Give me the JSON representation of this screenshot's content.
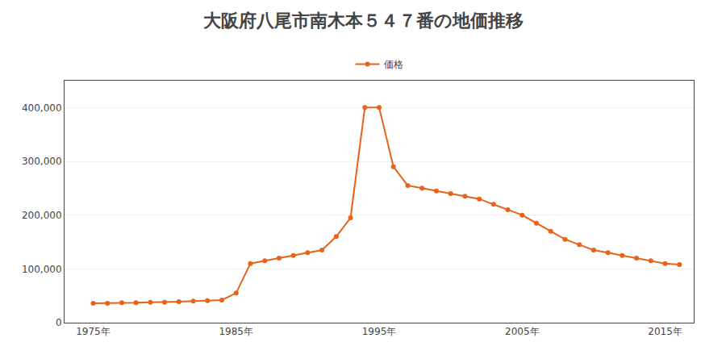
{
  "chart_data": {
    "type": "line",
    "title": "大阪府八尾市南木本５４７番の地価推移",
    "x": [
      1975,
      1976,
      1977,
      1978,
      1979,
      1980,
      1981,
      1982,
      1983,
      1984,
      1985,
      1986,
      1987,
      1988,
      1989,
      1990,
      1991,
      1992,
      1993,
      1994,
      1995,
      1996,
      1997,
      1998,
      1999,
      2000,
      2001,
      2002,
      2003,
      2004,
      2005,
      2006,
      2007,
      2008,
      2009,
      2010,
      2011,
      2012,
      2013,
      2014,
      2015,
      2016
    ],
    "series": [
      {
        "name": "価格",
        "color": "#e8621a",
        "marker": "circle",
        "values": [
          36000,
          36000,
          37000,
          37000,
          38000,
          38000,
          39000,
          40000,
          41000,
          42000,
          55000,
          110000,
          115000,
          120000,
          125000,
          130000,
          135000,
          160000,
          195000,
          400000,
          400000,
          290000,
          255000,
          250000,
          245000,
          240000,
          235000,
          230000,
          220000,
          210000,
          200000,
          185000,
          170000,
          155000,
          145000,
          135000,
          130000,
          125000,
          120000,
          115000,
          110000,
          108000
        ]
      }
    ],
    "xlim": [
      1973,
      2017
    ],
    "xticks": [
      {
        "value": 1975,
        "label": "1975年"
      },
      {
        "value": 1985,
        "label": "1985年"
      },
      {
        "value": 1995,
        "label": "1995年"
      },
      {
        "value": 2005,
        "label": "2005年"
      },
      {
        "value": 2015,
        "label": "2015年"
      }
    ],
    "ylim": [
      0,
      450000
    ],
    "yticks": [
      0,
      {
        "value": 100000,
        "label": "100,000"
      },
      {
        "value": 200000,
        "label": "200,000"
      },
      {
        "value": 300000,
        "label": "300,000"
      },
      {
        "value": 400000,
        "label": "400,000"
      }
    ],
    "grid": "y",
    "legend": "top"
  }
}
